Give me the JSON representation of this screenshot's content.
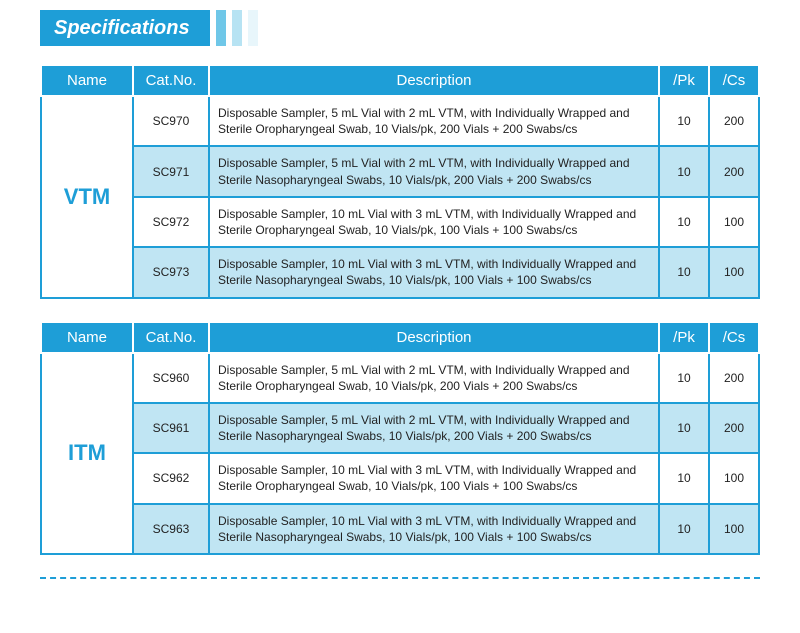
{
  "header": {
    "title": "Specifications",
    "title_bg": "#1e9ed7",
    "title_color": "#ffffff",
    "title_fontsize": 20,
    "bars": [
      "#6fc7e8",
      "#b7e3f3",
      "#e8f6fb"
    ]
  },
  "colors": {
    "header_bg": "#1e9ed7",
    "header_text": "#ffffff",
    "row_even_bg": "#ffffff",
    "row_odd_bg": "#c0e5f3",
    "cell_border": "#1e9ed7",
    "name_text": "#1e9ed7",
    "dash_color": "#1e9ed7"
  },
  "columns": [
    {
      "key": "name",
      "label": "Name"
    },
    {
      "key": "cat",
      "label": "Cat.No."
    },
    {
      "key": "desc",
      "label": "Description"
    },
    {
      "key": "pk",
      "label": "/Pk"
    },
    {
      "key": "cs",
      "label": "/Cs"
    }
  ],
  "tables": [
    {
      "group_name": "VTM",
      "rows": [
        {
          "cat": "SC970",
          "desc": "Disposable Sampler, 5 mL Vial with 2 mL VTM, with Individually Wrapped and Sterile Oropharyngeal Swab, 10 Vials/pk, 200 Vials + 200 Swabs/cs",
          "pk": "10",
          "cs": "200"
        },
        {
          "cat": "SC971",
          "desc": "Disposable Sampler, 5 mL Vial with 2 mL VTM, with Individually Wrapped and Sterile Nasopharyngeal Swabs, 10 Vials/pk, 200 Vials + 200 Swabs/cs",
          "pk": "10",
          "cs": "200"
        },
        {
          "cat": "SC972",
          "desc": "Disposable Sampler, 10 mL Vial with 3 mL VTM, with Individually Wrapped and Sterile Oropharyngeal Swab, 10 Vials/pk, 100 Vials + 100 Swabs/cs",
          "pk": "10",
          "cs": "100"
        },
        {
          "cat": "SC973",
          "desc": "Disposable Sampler, 10 mL Vial with 3 mL VTM, with Individually Wrapped and Sterile Nasopharyngeal Swabs, 10 Vials/pk, 100 Vials + 100 Swabs/cs",
          "pk": "10",
          "cs": "100"
        }
      ]
    },
    {
      "group_name": "ITM",
      "rows": [
        {
          "cat": "SC960",
          "desc": "Disposable Sampler, 5 mL Vial with 2 mL VTM, with Individually Wrapped and Sterile Oropharyngeal Swab, 10 Vials/pk, 200 Vials + 200 Swabs/cs",
          "pk": "10",
          "cs": "200"
        },
        {
          "cat": "SC961",
          "desc": "Disposable Sampler, 5 mL Vial with 2 mL VTM, with Individually Wrapped and Sterile Nasopharyngeal Swabs, 10 Vials/pk, 200 Vials + 200 Swabs/cs",
          "pk": "10",
          "cs": "200"
        },
        {
          "cat": "SC962",
          "desc": "Disposable Sampler, 10 mL Vial with 3 mL VTM, with Individually Wrapped and Sterile Oropharyngeal Swab, 10 Vials/pk, 100 Vials + 100 Swabs/cs",
          "pk": "10",
          "cs": "100"
        },
        {
          "cat": "SC963",
          "desc": "Disposable Sampler, 10 mL Vial with 3 mL VTM, with Individually Wrapped and Sterile Nasopharyngeal Swabs, 10 Vials/pk, 100 Vials + 100 Swabs/cs",
          "pk": "10",
          "cs": "100"
        }
      ]
    }
  ]
}
